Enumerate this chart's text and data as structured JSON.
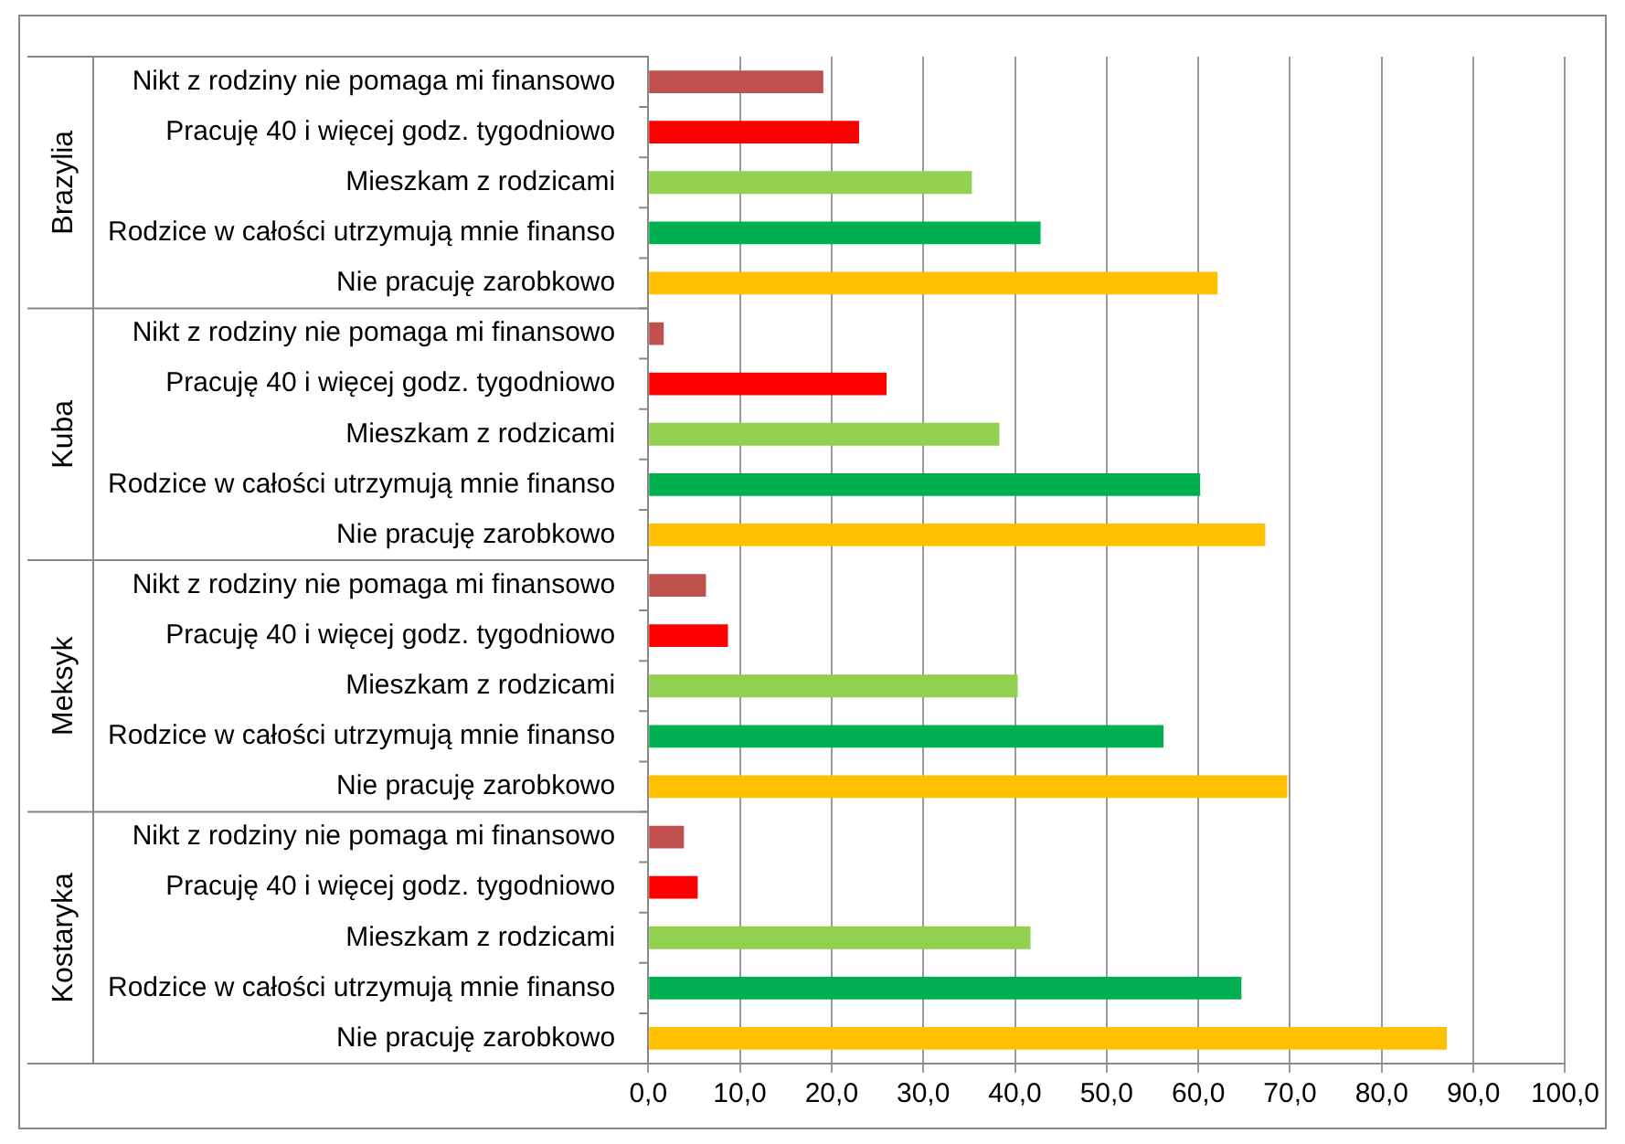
{
  "chart_data": {
    "type": "bar",
    "orientation": "horizontal",
    "categories": [
      "Nikt z rodziny nie pomaga mi finansowo",
      "Pracuję 40 i więcej godz. tygodniowo",
      "Mieszkam z rodzicami",
      "Rodzice w całości utrzymują mnie finanso",
      "Nie pracuję zarobkowo",
      "Nikt z rodziny nie pomaga mi finansowo",
      "Pracuję 40 i więcej godz. tygodniowo",
      "Mieszkam z rodzicami",
      "Rodzice w całości utrzymują mnie finanso",
      "Nie pracuję zarobkowo",
      "Nikt z rodziny nie pomaga mi finansowo",
      "Pracuję 40 i więcej godz. tygodniowo",
      "Mieszkam z rodzicami",
      "Rodzice w całości utrzymują mnie finanso",
      "Nie pracuję zarobkowo",
      "Nikt z rodziny nie pomaga mi finansowo",
      "Pracuję 40 i więcej godz. tygodniowo",
      "Mieszkam z rodzicami",
      "Rodzice w całości utrzymują mnie finanso",
      "Nie pracuję zarobkowo"
    ],
    "values": [
      19.1,
      23.0,
      35.3,
      42.8,
      62.1,
      1.7,
      26.0,
      38.3,
      60.2,
      67.3,
      6.3,
      8.7,
      40.3,
      56.2,
      69.7,
      3.9,
      5.4,
      41.7,
      64.7,
      87.1
    ],
    "colors": [
      "#c0504d",
      "#ff0000",
      "#92d050",
      "#00b050",
      "#ffc000",
      "#c0504d",
      "#ff0000",
      "#92d050",
      "#00b050",
      "#ffc000",
      "#c0504d",
      "#ff0000",
      "#92d050",
      "#00b050",
      "#ffc000",
      "#c0504d",
      "#ff0000",
      "#92d050",
      "#00b050",
      "#ffc000"
    ],
    "annotations": [
      "Brazylia",
      "Kuba",
      "Meksyk",
      "Kostaryka"
    ],
    "xlim": [
      0,
      100
    ],
    "xticks": [
      {
        "value": 0,
        "label": "0,0"
      },
      {
        "value": 10,
        "label": "10,0"
      },
      {
        "value": 20,
        "label": "20,0"
      },
      {
        "value": 30,
        "label": "30,0"
      },
      {
        "value": 40,
        "label": "40,0"
      },
      {
        "value": 50,
        "label": "50,0"
      },
      {
        "value": 60,
        "label": "60,0"
      },
      {
        "value": 70,
        "label": "70,0"
      },
      {
        "value": 80,
        "label": "80,0"
      },
      {
        "value": 90,
        "label": "90,0"
      },
      {
        "value": 100,
        "label": "100,0"
      }
    ],
    "grid": "x",
    "legend": false
  }
}
